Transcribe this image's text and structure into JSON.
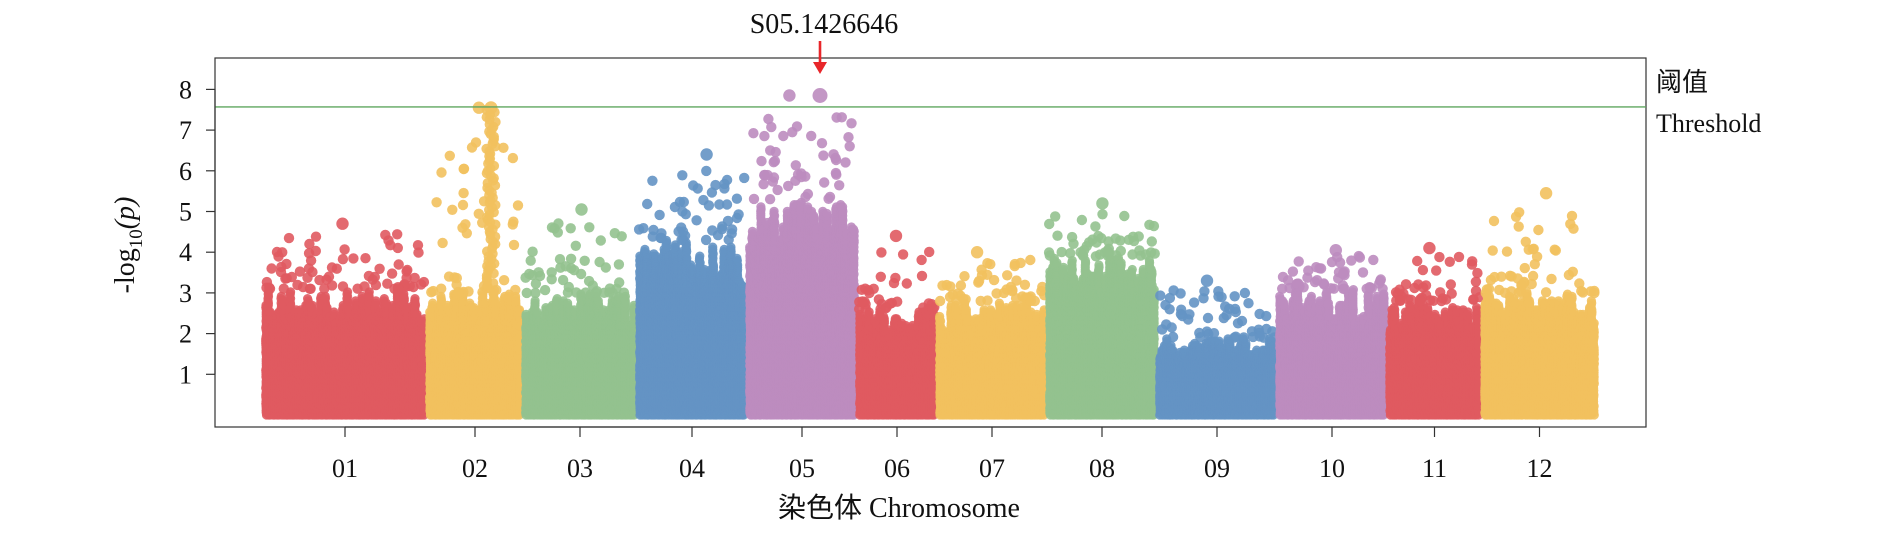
{
  "chart_data": {
    "type": "scatter",
    "subtype": "manhattan",
    "xlabel": "染色体 Chromosome",
    "ylabel_main": "-log",
    "ylabel_sub": "10",
    "ylabel_paren": "(p)",
    "yticks": [
      1,
      2,
      3,
      4,
      5,
      6,
      7,
      8
    ],
    "ylim": [
      0,
      8.3
    ],
    "grid": false,
    "threshold": {
      "value": 7.57,
      "label_cn": "阈值",
      "label_en": "Threshold",
      "color": "#5fa65f"
    },
    "annotation": {
      "label": "S05.1426646",
      "chromosome": "05",
      "value": 7.85,
      "arrow_color": "#e8262a"
    },
    "chromosomes": [
      {
        "label": "01",
        "color": "#e05a61",
        "bulk_max": 3.1,
        "peak": 4.7
      },
      {
        "label": "02",
        "color": "#f2c15e",
        "bulk_max": 3.0,
        "peak": 7.55
      },
      {
        "label": "03",
        "color": "#93c28f",
        "bulk_max": 3.0,
        "peak": 5.05
      },
      {
        "label": "04",
        "color": "#6494c4",
        "bulk_max": 4.3,
        "peak": 6.4
      },
      {
        "label": "05",
        "color": "#bd8cbf",
        "bulk_max": 5.3,
        "peak": 7.85
      },
      {
        "label": "06",
        "color": "#e05a61",
        "bulk_max": 2.6,
        "peak": 4.4
      },
      {
        "label": "07",
        "color": "#f2c15e",
        "bulk_max": 2.8,
        "peak": 4.0
      },
      {
        "label": "08",
        "color": "#93c28f",
        "bulk_max": 3.9,
        "peak": 5.2
      },
      {
        "label": "09",
        "color": "#6494c4",
        "bulk_max": 1.9,
        "peak": 3.3
      },
      {
        "label": "10",
        "color": "#bd8cbf",
        "bulk_max": 3.1,
        "peak": 4.05
      },
      {
        "label": "11",
        "color": "#e05a61",
        "bulk_max": 2.8,
        "peak": 4.1
      },
      {
        "label": "12",
        "color": "#f2c15e",
        "bulk_max": 3.0,
        "peak": 5.45
      }
    ]
  }
}
